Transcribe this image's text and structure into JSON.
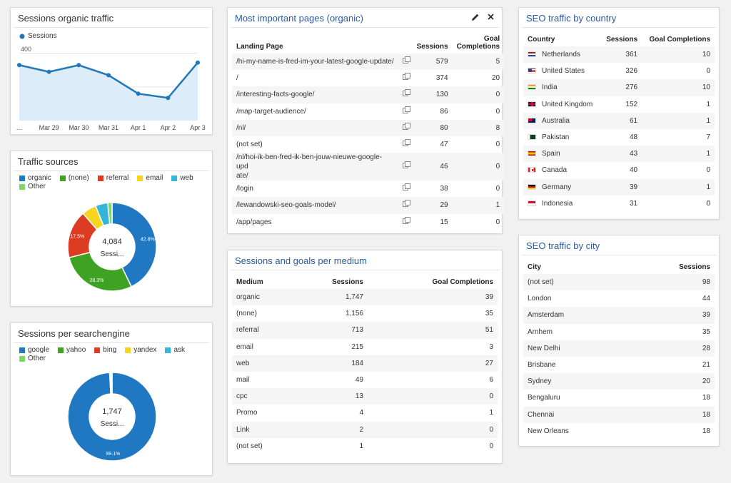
{
  "sessions_traffic": {
    "title": "Sessions organic traffic",
    "legend": "Sessions",
    "chart_data": {
      "type": "area",
      "title": "Sessions organic traffic",
      "x": [
        "…",
        "Mar 29",
        "Mar 30",
        "Mar 31",
        "Apr 1",
        "Apr 2",
        "Apr 3"
      ],
      "series": [
        {
          "name": "Sessions",
          "values": [
            330,
            290,
            330,
            270,
            160,
            135,
            345
          ]
        }
      ],
      "yticks": [
        200,
        400
      ],
      "ylim": [
        0,
        450
      ],
      "color": "#1f77b8"
    }
  },
  "traffic_sources": {
    "title": "Traffic sources",
    "center_value": "4,084",
    "center_label": "Sessi...",
    "chart_data": {
      "type": "pie",
      "categories": [
        "organic",
        "(none)",
        "referral",
        "email",
        "web",
        "Other"
      ],
      "values": [
        42.8,
        28.3,
        17.5,
        5.3,
        4.5,
        1.6
      ],
      "slice_labels": [
        "42.8%",
        "28.3%",
        "17.5%",
        "",
        "",
        ""
      ],
      "colors": [
        "#1f78c1",
        "#3ea322",
        "#dc3c22",
        "#f5d51e",
        "#35b6d8",
        "#7ed863"
      ]
    }
  },
  "search_engines": {
    "title": "Sessions per searchengine",
    "center_value": "1,747",
    "center_label": "Sessi...",
    "chart_data": {
      "type": "pie",
      "categories": [
        "google",
        "yahoo",
        "bing",
        "yandex",
        "ask",
        "Other"
      ],
      "values": [
        99.1,
        0.3,
        0.2,
        0.2,
        0.1,
        0.1
      ],
      "slice_labels": [
        "99.1%",
        "",
        "",
        "",
        "",
        ""
      ],
      "colors": [
        "#1f78c1",
        "#3ea322",
        "#dc3c22",
        "#f5d51e",
        "#35b6d8",
        "#7ed863"
      ]
    }
  },
  "important_pages": {
    "title": "Most important pages (organic)",
    "columns": [
      "Landing Page",
      "Sessions",
      "Goal Completions"
    ],
    "rows": [
      {
        "page": "/hi-my-name-is-fred-im-your-latest-google-update/",
        "sessions": "579",
        "goals": "5"
      },
      {
        "page": "/",
        "sessions": "374",
        "goals": "20"
      },
      {
        "page": "/interesting-facts-google/",
        "sessions": "130",
        "goals": "0"
      },
      {
        "page": "/map-target-audience/",
        "sessions": "86",
        "goals": "0"
      },
      {
        "page": "/nl/",
        "sessions": "80",
        "goals": "8"
      },
      {
        "page": "(not set)",
        "sessions": "47",
        "goals": "0"
      },
      {
        "page": "/nl/hoi-ik-ben-fred-ik-ben-jouw-nieuwe-google-upd",
        "page2": "ate/",
        "sessions": "46",
        "goals": "0"
      },
      {
        "page": "/login",
        "sessions": "38",
        "goals": "0"
      },
      {
        "page": "/lewandowski-seo-goals-model/",
        "sessions": "29",
        "goals": "1"
      },
      {
        "page": "/app/pages",
        "sessions": "15",
        "goals": "0"
      }
    ]
  },
  "medium": {
    "title": "Sessions and goals per medium",
    "columns": [
      "Medium",
      "Sessions",
      "Goal Completions"
    ],
    "rows": [
      {
        "medium": "organic",
        "sessions": "1,747",
        "goals": "39"
      },
      {
        "medium": "(none)",
        "sessions": "1,156",
        "goals": "35"
      },
      {
        "medium": "referral",
        "sessions": "713",
        "goals": "51"
      },
      {
        "medium": "email",
        "sessions": "215",
        "goals": "3"
      },
      {
        "medium": "web",
        "sessions": "184",
        "goals": "27"
      },
      {
        "medium": "mail",
        "sessions": "49",
        "goals": "6"
      },
      {
        "medium": "cpc",
        "sessions": "13",
        "goals": "0"
      },
      {
        "medium": "Promo",
        "sessions": "4",
        "goals": "1"
      },
      {
        "medium": "Link",
        "sessions": "2",
        "goals": "0"
      },
      {
        "medium": "(not set)",
        "sessions": "1",
        "goals": "0"
      }
    ]
  },
  "country": {
    "title": "SEO traffic by country",
    "columns": [
      "Country",
      "Sessions",
      "Goal Completions"
    ],
    "rows": [
      {
        "country": "Netherlands",
        "flag": "nl",
        "sessions": "361",
        "goals": "10"
      },
      {
        "country": "United States",
        "flag": "us",
        "sessions": "326",
        "goals": "0"
      },
      {
        "country": "India",
        "flag": "in",
        "sessions": "276",
        "goals": "10"
      },
      {
        "country": "United Kingdom",
        "flag": "gb",
        "sessions": "152",
        "goals": "1"
      },
      {
        "country": "Australia",
        "flag": "au",
        "sessions": "61",
        "goals": "1"
      },
      {
        "country": "Pakistan",
        "flag": "pk",
        "sessions": "48",
        "goals": "7"
      },
      {
        "country": "Spain",
        "flag": "es",
        "sessions": "43",
        "goals": "1"
      },
      {
        "country": "Canada",
        "flag": "ca",
        "sessions": "40",
        "goals": "0"
      },
      {
        "country": "Germany",
        "flag": "de",
        "sessions": "39",
        "goals": "1"
      },
      {
        "country": "Indonesia",
        "flag": "id",
        "sessions": "31",
        "goals": "0"
      }
    ]
  },
  "city": {
    "title": "SEO traffic by city",
    "columns": [
      "City",
      "Sessions"
    ],
    "rows": [
      {
        "city": "(not set)",
        "sessions": "98"
      },
      {
        "city": "London",
        "sessions": "44"
      },
      {
        "city": "Amsterdam",
        "sessions": "39"
      },
      {
        "city": "Arnhem",
        "sessions": "35"
      },
      {
        "city": "New Delhi",
        "sessions": "28"
      },
      {
        "city": "Brisbane",
        "sessions": "21"
      },
      {
        "city": "Sydney",
        "sessions": "20"
      },
      {
        "city": "Bengaluru",
        "sessions": "18"
      },
      {
        "city": "Chennai",
        "sessions": "18"
      },
      {
        "city": "New Orleans",
        "sessions": "18"
      }
    ]
  }
}
